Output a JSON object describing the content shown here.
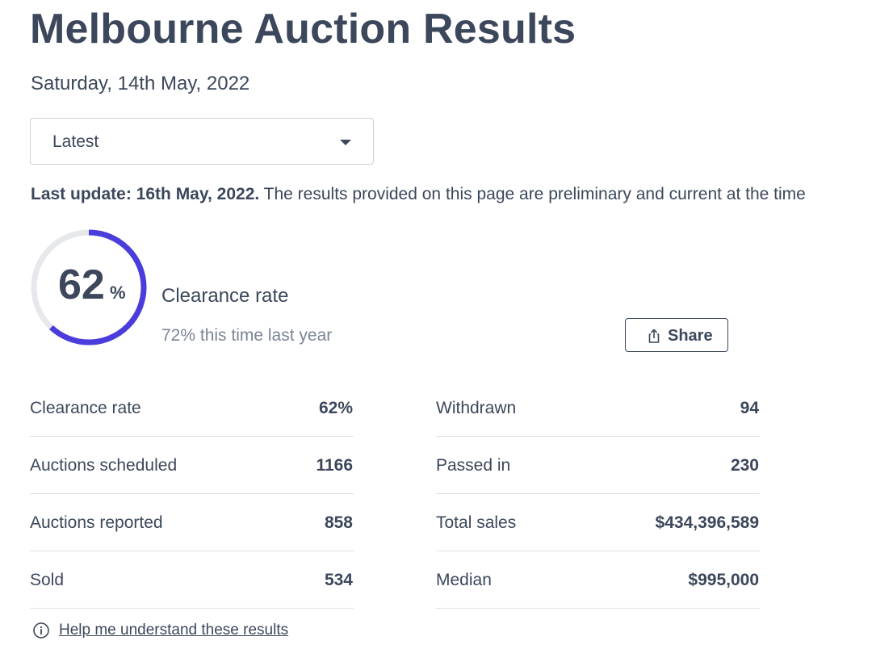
{
  "page": {
    "title": "Melbourne Auction Results",
    "date": "Saturday, 14th May, 2022"
  },
  "filter": {
    "selected": "Latest"
  },
  "update": {
    "label": "Last update: 16th May, 2022.",
    "text": " The results provided on this page are preliminary and current at the time"
  },
  "summary": {
    "clearance_value": "62",
    "clearance_unit": "%",
    "clearance_fraction": 0.62,
    "label": "Clearance rate",
    "comparison": "72% this time last year",
    "share_label": "Share"
  },
  "stats": {
    "left": [
      {
        "label": "Clearance rate",
        "value": "62%"
      },
      {
        "label": "Auctions scheduled",
        "value": "1166"
      },
      {
        "label": "Auctions reported",
        "value": "858"
      },
      {
        "label": "Sold",
        "value": "534"
      }
    ],
    "right": [
      {
        "label": "Withdrawn",
        "value": "94"
      },
      {
        "label": "Passed in",
        "value": "230"
      },
      {
        "label": "Total sales",
        "value": "$434,396,589"
      },
      {
        "label": "Median",
        "value": "$995,000"
      }
    ]
  },
  "help": {
    "link_text": "Help me understand these results"
  },
  "colors": {
    "text": "#3c475b",
    "muted": "#7b8494",
    "accent": "#4b3ddb",
    "track": "#e6e8ec",
    "divider": "#dde0e5"
  },
  "icons": {
    "dropdown": "chevron-down-icon",
    "share": "share-icon",
    "info": "info-icon"
  }
}
